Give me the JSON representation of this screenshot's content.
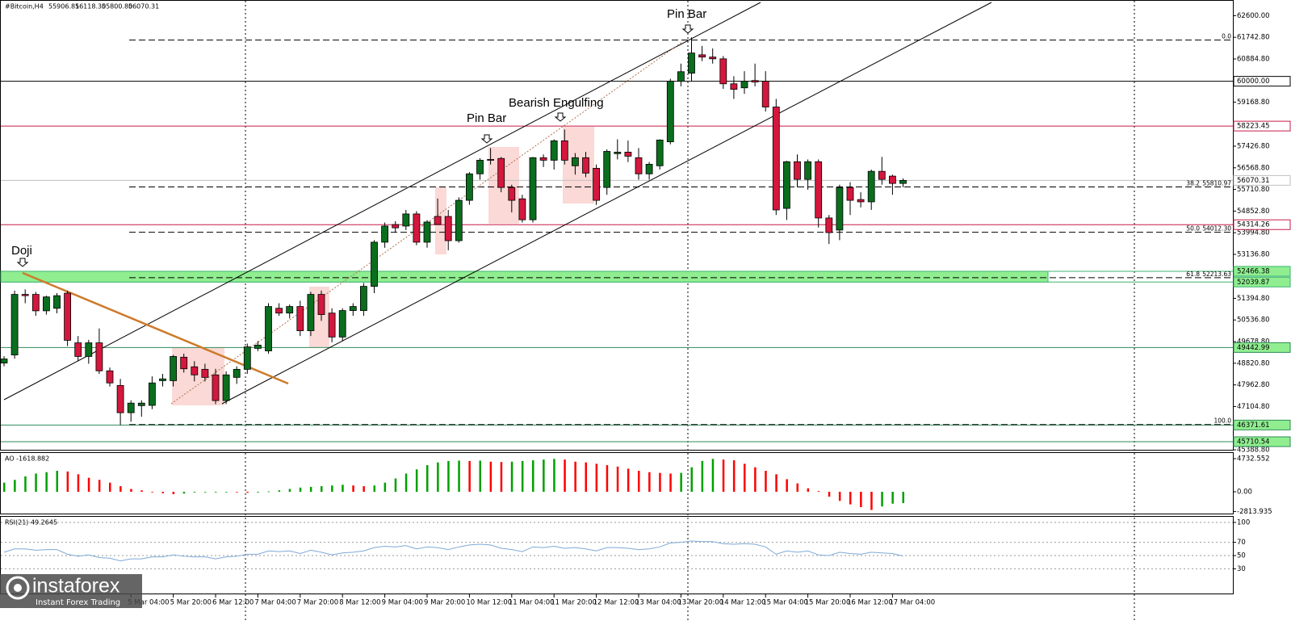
{
  "header": {
    "symbol": "#Bitcoin,H4",
    "ohlc": [
      "55906.81",
      "56118.30",
      "55800.80",
      "56070.31"
    ]
  },
  "brand": {
    "name": "instaforex",
    "tagline": "Instant Forex Trading"
  },
  "chart_data": [
    {
      "type": "candlestick",
      "annotations": [
        "Doji",
        "Pin Bar",
        "Bearish Engulfing",
        "Pin Bar"
      ],
      "categories": [
        null,
        null,
        null,
        null,
        null,
        null,
        null,
        null,
        null,
        null,
        null,
        null,
        "5 Mar 04:00",
        null,
        null,
        null,
        "5 Mar 20:00",
        null,
        null,
        null,
        "6 Mar 12:00",
        null,
        null,
        null,
        "7 Mar 04:00",
        null,
        null,
        null,
        "7 Mar 20:00",
        null,
        null,
        null,
        "8 Mar 12:00",
        null,
        null,
        null,
        "9 Mar 04:00",
        null,
        null,
        null,
        "9 Mar 20:00",
        null,
        null,
        null,
        "10 Mar 12:00",
        null,
        null,
        null,
        "11 Mar 04:00",
        null,
        null,
        null,
        "11 Mar 20:00",
        null,
        null,
        null,
        "12 Mar 12:00",
        null,
        null,
        null,
        "13 Mar 04:00",
        null,
        null,
        null,
        "13 Mar 20:00",
        null,
        null,
        null,
        "14 Mar 12:00",
        null,
        null,
        null,
        "15 Mar 04:00",
        null,
        null,
        null,
        "15 Mar 20:00",
        null,
        null,
        null,
        "16 Mar 12:00",
        null,
        null,
        null,
        "17 Mar 04:00",
        null
      ],
      "ohlc": [
        [
          48830,
          49100,
          48700,
          48990
        ],
        [
          49150,
          51700,
          49000,
          51550
        ],
        [
          51550,
          51750,
          51200,
          51500
        ],
        [
          51550,
          51650,
          50700,
          50900
        ],
        [
          50900,
          51500,
          50750,
          51450
        ],
        [
          51000,
          51600,
          50800,
          51500
        ],
        [
          51600,
          51700,
          49500,
          49730
        ],
        [
          49630,
          49900,
          48900,
          49090
        ],
        [
          49090,
          49750,
          48800,
          49630
        ],
        [
          49630,
          50200,
          48400,
          48520
        ],
        [
          48520,
          48650,
          47900,
          48040
        ],
        [
          47940,
          48200,
          46370,
          46860
        ],
        [
          46860,
          47350,
          46500,
          47240
        ],
        [
          47140,
          47350,
          46700,
          47240
        ],
        [
          47150,
          48300,
          47000,
          48040
        ],
        [
          48130,
          48400,
          47900,
          48200
        ],
        [
          48130,
          49150,
          47900,
          49090
        ],
        [
          49060,
          49200,
          48450,
          48600
        ],
        [
          48680,
          48900,
          48100,
          48360
        ],
        [
          48580,
          48800,
          48100,
          48260
        ],
        [
          48360,
          48600,
          47200,
          47340
        ],
        [
          47340,
          48500,
          47200,
          48360
        ],
        [
          48260,
          48700,
          48000,
          48580
        ],
        [
          48580,
          49600,
          48400,
          49470
        ],
        [
          49410,
          49700,
          49300,
          49540
        ],
        [
          49310,
          51200,
          49200,
          51070
        ],
        [
          51000,
          51200,
          50700,
          50810
        ],
        [
          50810,
          51150,
          50600,
          51070
        ],
        [
          51070,
          51300,
          49900,
          50110
        ],
        [
          50110,
          51650,
          49900,
          51550
        ],
        [
          51550,
          51700,
          50500,
          50750
        ],
        [
          50810,
          51000,
          49650,
          49860
        ],
        [
          49860,
          51000,
          49700,
          50910
        ],
        [
          50910,
          51200,
          50700,
          51070
        ],
        [
          50910,
          52000,
          50700,
          51870
        ],
        [
          51870,
          53700,
          51600,
          53620
        ],
        [
          53620,
          54400,
          53400,
          54260
        ],
        [
          54320,
          54450,
          54000,
          54190
        ],
        [
          54260,
          54900,
          54100,
          54740
        ],
        [
          54740,
          54850,
          53500,
          53620
        ],
        [
          53620,
          54500,
          53400,
          54420
        ],
        [
          54640,
          55350,
          54400,
          54320
        ],
        [
          54640,
          54900,
          53300,
          53680
        ],
        [
          53680,
          55400,
          53600,
          55280
        ],
        [
          55280,
          56400,
          55100,
          56330
        ],
        [
          56330,
          56950,
          56100,
          56870
        ],
        [
          56900,
          57350,
          56700,
          56870
        ],
        [
          56940,
          57000,
          55600,
          55790
        ],
        [
          55790,
          55900,
          54800,
          55280
        ],
        [
          55340,
          55500,
          54400,
          54510
        ],
        [
          54510,
          57000,
          54400,
          56970
        ],
        [
          56970,
          57100,
          56600,
          56870
        ],
        [
          56870,
          57700,
          56500,
          57640
        ],
        [
          57640,
          58090,
          56700,
          56870
        ],
        [
          56650,
          57150,
          56300,
          56970
        ],
        [
          56970,
          57200,
          56200,
          56360
        ],
        [
          56550,
          56700,
          55100,
          55280
        ],
        [
          55790,
          57300,
          55500,
          57220
        ],
        [
          57130,
          57700,
          56900,
          57190
        ],
        [
          57190,
          57650,
          56800,
          57030
        ],
        [
          56970,
          57350,
          56100,
          56330
        ],
        [
          56330,
          56800,
          56100,
          56710
        ],
        [
          56650,
          57700,
          56500,
          57670
        ],
        [
          57600,
          60100,
          57500,
          60000
        ],
        [
          60000,
          60700,
          59800,
          60380
        ],
        [
          60320,
          61740,
          60000,
          61120
        ],
        [
          61050,
          61400,
          60800,
          60960
        ],
        [
          60960,
          61300,
          60700,
          60890
        ],
        [
          60890,
          61000,
          59700,
          59900
        ],
        [
          59900,
          60200,
          59300,
          59680
        ],
        [
          59740,
          60400,
          59500,
          60000
        ],
        [
          60030,
          60700,
          59800,
          59970
        ],
        [
          60000,
          60400,
          58800,
          58980
        ],
        [
          58980,
          59300,
          54700,
          54900
        ],
        [
          54960,
          56850,
          54500,
          56810
        ],
        [
          56810,
          57100,
          55800,
          56110
        ],
        [
          56110,
          56900,
          55700,
          56810
        ],
        [
          56810,
          56900,
          54200,
          54580
        ],
        [
          54580,
          54700,
          53550,
          54000
        ],
        [
          54100,
          55900,
          53700,
          55790
        ],
        [
          55790,
          56000,
          54700,
          55280
        ],
        [
          55310,
          55600,
          55000,
          55220
        ],
        [
          55220,
          56500,
          54900,
          56430
        ],
        [
          56430,
          57000,
          55900,
          56110
        ],
        [
          56240,
          56300,
          55500,
          55950
        ],
        [
          55950,
          56150,
          55800,
          56070
        ]
      ],
      "up_color": "#0a6e1e",
      "down_color": "#d4173d",
      "ylim": [
        45390,
        63190
      ],
      "yticks": [
        {
          "value": 62600,
          "label": "62600.00"
        },
        {
          "value": 61742.8,
          "label": "61742.80"
        },
        {
          "value": 60884.8,
          "label": "60884.80"
        },
        {
          "value": 59168.8,
          "label": "59168.80"
        },
        {
          "value": 57426.8,
          "label": "57426.80"
        },
        {
          "value": 56568.8,
          "label": "56568.80"
        },
        {
          "value": 55710.8,
          "label": "55710.80"
        },
        {
          "value": 54852.8,
          "label": "54852.80"
        },
        {
          "value": 53994.8,
          "label": "53994.80"
        },
        {
          "value": 53136.8,
          "label": "53136.80"
        },
        {
          "value": 51394.8,
          "label": "51394.80"
        },
        {
          "value": 50536.8,
          "label": "50536.80"
        },
        {
          "value": 49678.8,
          "label": "49678.80"
        },
        {
          "value": 48820.8,
          "label": "48820.80"
        },
        {
          "value": 47962.8,
          "label": "47962.80"
        },
        {
          "value": 47104.8,
          "label": "47104.80"
        },
        {
          "value": 45388.8,
          "label": "45388.80"
        }
      ],
      "levels": [
        {
          "value": 60000,
          "label": "60000.00",
          "color": "#000000",
          "box": "#ffffff"
        },
        {
          "value": 58223.45,
          "label": "58223.45",
          "color": "#c71c48",
          "box": "#ffffff"
        },
        {
          "value": 56070.31,
          "label": "56070.31",
          "color": "#c0c0c0",
          "box": "#ffffff"
        },
        {
          "value": 54314.26,
          "label": "54314.26",
          "color": "#c71c48",
          "box": "#ffffff"
        },
        {
          "value": 52466.38,
          "label": "52466.38",
          "color": "#3cb371",
          "box": "#90ee90"
        },
        {
          "value": 52039.87,
          "label": "52039.87",
          "color": "#3cb371",
          "box": "#90ee90"
        },
        {
          "value": 49442.99,
          "label": "49442.99",
          "color": "#2e8b57",
          "box": "#90ee90"
        },
        {
          "value": 46371.61,
          "label": "46371.61",
          "color": "#2e8b57",
          "box": "#90ee90"
        },
        {
          "value": 45710.54,
          "label": "45710.54",
          "color": "#2e8b57",
          "box": "#90ee90"
        }
      ],
      "fib_levels": [
        {
          "ratio": "0.0",
          "value": 61633.8
        },
        {
          "ratio": "38.2",
          "value": 55810.97,
          "label": "55810.97"
        },
        {
          "ratio": "50.0",
          "value": 54012.3,
          "label": "54012.30"
        },
        {
          "ratio": "61.8",
          "value": 52213.63,
          "label": "52213.63"
        },
        {
          "ratio": "100.0",
          "value": 46390.8
        }
      ]
    },
    {
      "type": "bar",
      "title": "AO -1618.882",
      "values": [
        1300,
        1700,
        2200,
        2600,
        2800,
        3000,
        2900,
        2500,
        2000,
        1700,
        1300,
        800,
        400,
        200,
        -50,
        -200,
        -350,
        -250,
        -100,
        -80,
        -60,
        -60,
        -80,
        -150,
        -100,
        50,
        200,
        400,
        600,
        700,
        800,
        900,
        1000,
        900,
        800,
        900,
        1300,
        1900,
        2600,
        3200,
        3800,
        4200,
        4400,
        4450,
        4400,
        4450,
        4300,
        4250,
        4300,
        4400,
        4500,
        4600,
        4700,
        4600,
        4300,
        4200,
        4000,
        3800,
        3600,
        3300,
        3000,
        2800,
        2700,
        2600,
        2700,
        3500,
        4400,
        4700,
        4600,
        4500,
        4000,
        3500,
        3000,
        2500,
        1800,
        1200,
        500,
        100,
        -700,
        -1300,
        -1800,
        -2200,
        -2600,
        -2100,
        -1700,
        -1618.882
      ],
      "up_color": "#00a000",
      "down_color": "#ff0000",
      "ylim": [
        -3116,
        5540
      ],
      "yticks": [
        4732.552,
        {
          "value": 0,
          "label": "0.00"
        },
        -2813.935
      ]
    },
    {
      "type": "line",
      "title": "RSI(21) 49.2645",
      "values": [
        55,
        60,
        60,
        58,
        59,
        59,
        52,
        49,
        51,
        47,
        46,
        42,
        45,
        45,
        48,
        48,
        51,
        49,
        48,
        48,
        45,
        48,
        49,
        52,
        52,
        57,
        56,
        57,
        53,
        58,
        55,
        51,
        54,
        55,
        57,
        62,
        64,
        63,
        65,
        60,
        63,
        62,
        59,
        63,
        66,
        67,
        66,
        61,
        59,
        56,
        63,
        62,
        64,
        61,
        62,
        60,
        57,
        62,
        62,
        61,
        59,
        60,
        63,
        69,
        70,
        72,
        71,
        71,
        68,
        67,
        68,
        67,
        63,
        52,
        57,
        55,
        57,
        51,
        50,
        55,
        53,
        52,
        55,
        54,
        53,
        49.2645
      ],
      "color": "#7fa9d6",
      "ylim": [
        -7.3,
        108.5
      ],
      "yticks": [
        100,
        70,
        50,
        30
      ]
    }
  ]
}
